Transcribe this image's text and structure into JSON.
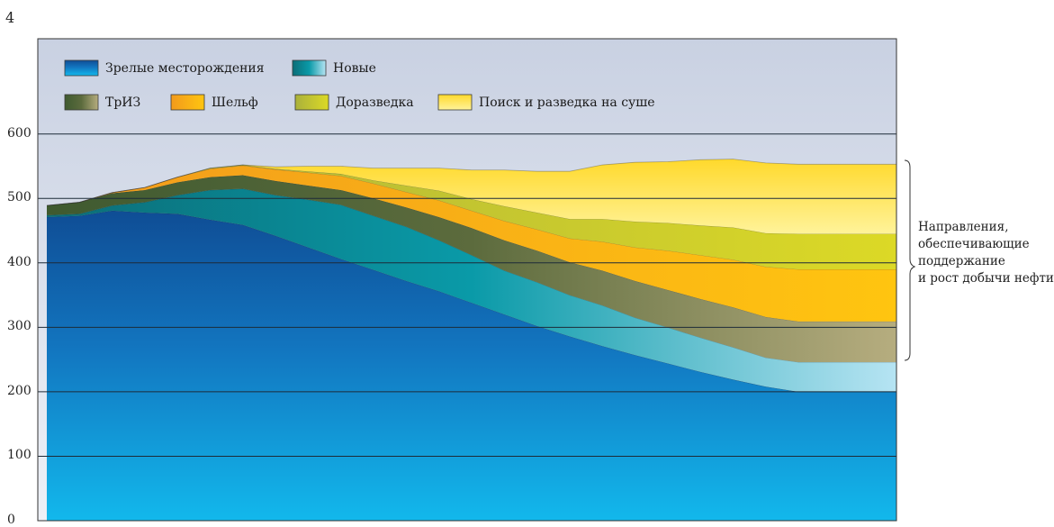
{
  "page_number": "4",
  "annotation": [
    "Направления,",
    "обеспечивающие",
    "поддержание",
    "и рост добычи нефти"
  ],
  "colors": {
    "mature": "#1a8fd0",
    "new": "#0a9aa6",
    "triz": "#6b7a46",
    "shelf": "#f7b80b",
    "dorazvedka": "#c0c42a",
    "search": "#ffe03a",
    "legend_background": "#cdd5e4"
  },
  "chart_data": {
    "type": "area",
    "stacked": true,
    "title": "",
    "xlabel": "",
    "ylabel": "",
    "ylim": [
      0,
      700
    ],
    "yticks": [
      0,
      100,
      200,
      300,
      400,
      500,
      600
    ],
    "grid": true,
    "legend_position": "top-left",
    "x": [
      0,
      0.5,
      1,
      1.5,
      2,
      2.5,
      3,
      3.5,
      4,
      4.5,
      5,
      5.5,
      6,
      6.5,
      7,
      7.5,
      8,
      8.5,
      9,
      9.5,
      10,
      10.5,
      11,
      11.5,
      12,
      12.5,
      13
    ],
    "series": [
      {
        "name": "Зрелые месторождения",
        "values": [
          471,
          473,
          481,
          478,
          476,
          467,
          459,
          442,
          424,
          406,
          389,
          372,
          356,
          338,
          320,
          302,
          286,
          271,
          257,
          244,
          231,
          219,
          208,
          200,
          200,
          200,
          200
        ]
      },
      {
        "name": "Новые",
        "values": [
          3,
          3,
          8,
          16,
          29,
          46,
          56,
          63,
          74,
          84,
          84,
          84,
          79,
          74,
          68,
          68,
          64,
          63,
          58,
          56,
          53,
          50,
          45,
          46,
          46,
          46,
          46
        ]
      },
      {
        "name": "ТрИЗ",
        "values": [
          15,
          18,
          19,
          19,
          20,
          20,
          21,
          22,
          22,
          23,
          27,
          30,
          36,
          42,
          47,
          49,
          51,
          54,
          57,
          58,
          60,
          62,
          63,
          63,
          63,
          63,
          63
        ]
      },
      {
        "name": "Шельф",
        "values": [
          0,
          0,
          1,
          4,
          8,
          13,
          15,
          18,
          20,
          22,
          23,
          24,
          26,
          27,
          30,
          33,
          37,
          45,
          52,
          61,
          68,
          74,
          78,
          81,
          81,
          81,
          81
        ]
      },
      {
        "name": "Доразведка",
        "values": [
          0,
          0,
          0,
          0,
          0,
          1,
          1,
          1,
          2,
          3,
          5,
          10,
          15,
          18,
          23,
          26,
          30,
          35,
          40,
          43,
          46,
          50,
          52,
          55,
          55,
          55,
          55
        ]
      },
      {
        "name": "Поиск и разведка на суше",
        "values": [
          0,
          0,
          0,
          0,
          0,
          0,
          0,
          3,
          8,
          12,
          19,
          27,
          35,
          45,
          56,
          64,
          74,
          84,
          92,
          95,
          102,
          106,
          109,
          108,
          108,
          108,
          108
        ]
      }
    ]
  }
}
